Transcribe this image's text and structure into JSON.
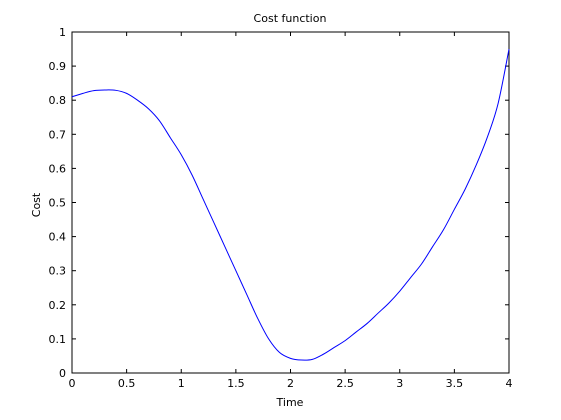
{
  "chart_data": {
    "type": "line",
    "title": "Cost function",
    "xlabel": "Time",
    "ylabel": "Cost",
    "xlim": [
      0,
      4
    ],
    "ylim": [
      0,
      1
    ],
    "grid": false,
    "xticks": [
      0,
      0.5,
      1,
      1.5,
      2,
      2.5,
      3,
      3.5,
      4
    ],
    "xtick_labels": [
      "0",
      "0.5",
      "1",
      "1.5",
      "2",
      "2.5",
      "3",
      "3.5",
      "4"
    ],
    "yticks": [
      0,
      0.1,
      0.2,
      0.3,
      0.4,
      0.5,
      0.6,
      0.7,
      0.8,
      0.9,
      1
    ],
    "ytick_labels": [
      "0",
      "0.1",
      "0.2",
      "0.3",
      "0.4",
      "0.5",
      "0.6",
      "0.7",
      "0.8",
      "0.9",
      "1"
    ],
    "series": [
      {
        "color": "#0000ff",
        "x": [
          0,
          0.1,
          0.2,
          0.3,
          0.4,
          0.5,
          0.6,
          0.7,
          0.8,
          0.9,
          1.0,
          1.1,
          1.2,
          1.3,
          1.4,
          1.5,
          1.6,
          1.7,
          1.8,
          1.9,
          2.0,
          2.1,
          2.2,
          2.3,
          2.4,
          2.5,
          2.6,
          2.7,
          2.8,
          2.9,
          3.0,
          3.1,
          3.2,
          3.3,
          3.4,
          3.5,
          3.6,
          3.7,
          3.8,
          3.9,
          4.0
        ],
        "y": [
          0.81,
          0.82,
          0.828,
          0.83,
          0.829,
          0.82,
          0.8,
          0.775,
          0.74,
          0.69,
          0.64,
          0.58,
          0.51,
          0.44,
          0.37,
          0.3,
          0.23,
          0.16,
          0.1,
          0.06,
          0.043,
          0.038,
          0.04,
          0.055,
          0.075,
          0.095,
          0.12,
          0.145,
          0.175,
          0.205,
          0.24,
          0.28,
          0.32,
          0.37,
          0.42,
          0.48,
          0.54,
          0.61,
          0.69,
          0.79,
          0.95
        ]
      }
    ]
  }
}
